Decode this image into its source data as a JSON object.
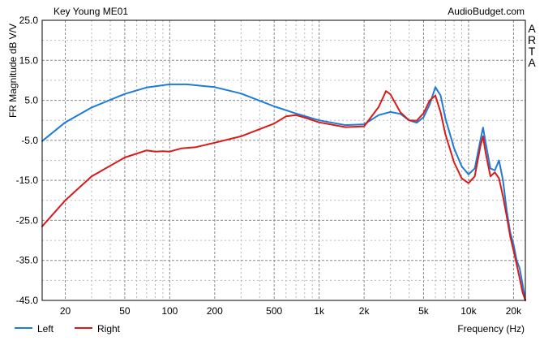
{
  "chart_data": {
    "type": "line",
    "title": "Key Young ME01",
    "watermark": "AudioBudget.com",
    "side_label": "ARTA",
    "xlabel": "Frequency (Hz)",
    "ylabel": "FR Magnitude dB V/V",
    "x_scale": "log",
    "xlim": [
      14,
      24000
    ],
    "ylim": [
      -45,
      25
    ],
    "y_ticks": [
      25,
      15,
      5,
      -5,
      -15,
      -25,
      -35,
      -45
    ],
    "y_tick_labels": [
      "25.0",
      "15.0",
      "5.0",
      "-5.0",
      "-15.0",
      "-25.0",
      "-35.0",
      "-45.0"
    ],
    "x_ticks": [
      20,
      50,
      100,
      200,
      500,
      1000,
      2000,
      5000,
      10000,
      20000
    ],
    "x_tick_labels": [
      "20",
      "50",
      "100",
      "200",
      "500",
      "1k",
      "2k",
      "5k",
      "10k",
      "20k"
    ],
    "grid": true,
    "legend_position": "bottom-left",
    "series": [
      {
        "name": "Left",
        "color": "#1e7bd6",
        "x": [
          14,
          20,
          30,
          50,
          70,
          100,
          130,
          200,
          300,
          500,
          700,
          1000,
          1500,
          2000,
          2500,
          3000,
          3500,
          4000,
          4500,
          5000,
          5500,
          6000,
          6500,
          7000,
          8000,
          9000,
          10000,
          11000,
          12000,
          12500,
          13000,
          14000,
          15000,
          16000,
          17000,
          18000,
          19000,
          20000,
          21000,
          22000,
          23000,
          24000
        ],
        "y": [
          -5.2,
          -0.5,
          3.2,
          6.6,
          8.2,
          9.0,
          9.0,
          8.3,
          6.7,
          3.5,
          1.7,
          0.0,
          -1.2,
          -1.0,
          1.3,
          2.1,
          1.6,
          0.0,
          -0.6,
          0.8,
          4.0,
          8.3,
          6.2,
          0.5,
          -7.0,
          -11.5,
          -13.5,
          -12.0,
          -5.0,
          -1.8,
          -5.5,
          -12.0,
          -12.5,
          -10.0,
          -15.0,
          -22.5,
          -28.0,
          -31.0,
          -35.0,
          -37.0,
          -41.0,
          -45.0
        ]
      },
      {
        "name": "Right",
        "color": "#d91a1a",
        "x": [
          14,
          20,
          30,
          50,
          70,
          80,
          90,
          100,
          120,
          150,
          200,
          300,
          500,
          600,
          700,
          800,
          1000,
          1500,
          2000,
          2500,
          2800,
          3000,
          3500,
          4000,
          4500,
          5000,
          5500,
          6000,
          6500,
          7000,
          8000,
          9000,
          10000,
          11000,
          12000,
          12500,
          13000,
          14000,
          15000,
          16000,
          17000,
          18000,
          19000,
          20000,
          21000,
          22000,
          23000,
          24000
        ],
        "y": [
          -26.5,
          -20.0,
          -14.0,
          -9.3,
          -7.5,
          -7.8,
          -7.7,
          -7.8,
          -7.0,
          -6.7,
          -5.6,
          -4.0,
          -0.8,
          1.0,
          1.3,
          0.7,
          -0.5,
          -1.7,
          -1.5,
          3.3,
          7.3,
          6.5,
          2.0,
          0.0,
          -0.1,
          1.8,
          5.0,
          6.2,
          2.0,
          -3.5,
          -10.5,
          -14.5,
          -15.7,
          -14.0,
          -6.5,
          -4.0,
          -8.0,
          -14.0,
          -13.0,
          -14.5,
          -19.0,
          -24.0,
          -29.0,
          -32.5,
          -36.0,
          -39.5,
          -43.0,
          -45.0
        ]
      }
    ]
  }
}
